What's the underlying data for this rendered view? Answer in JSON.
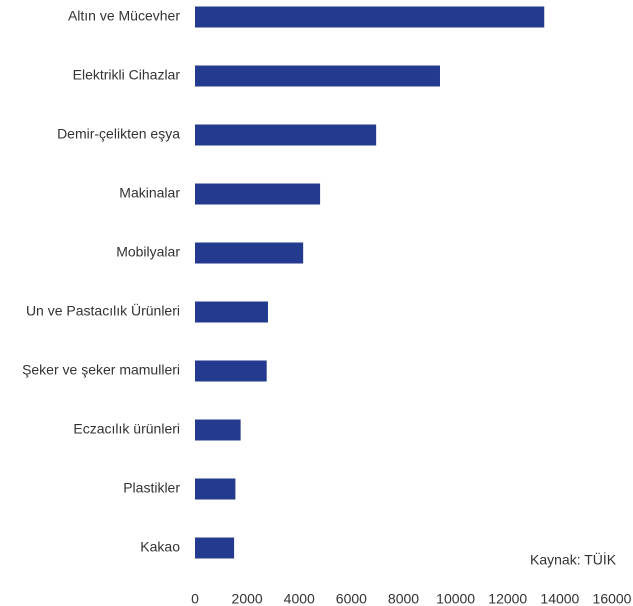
{
  "chart_data": {
    "type": "barh",
    "categories": [
      "Altın ve Mücevher",
      "Elektrikli Cihazlar",
      "Demir-çelikten eşya",
      "Makinalar",
      "Mobilyalar",
      "Un ve Pastacılık Ürünleri",
      "Şeker ve şeker mamulleri",
      "Eczacılık ürünleri",
      "Plastikler",
      "Kakao"
    ],
    "values": [
      13400,
      9400,
      6950,
      4800,
      4150,
      2800,
      2750,
      1750,
      1550,
      1500
    ],
    "color": "#233a8f",
    "xlim": [
      0,
      16000
    ],
    "xticks": [
      0,
      2000,
      4000,
      6000,
      8000,
      10000,
      12000,
      14000,
      16000
    ],
    "annotation": "Kaynak: TÜİK",
    "grid": false
  }
}
